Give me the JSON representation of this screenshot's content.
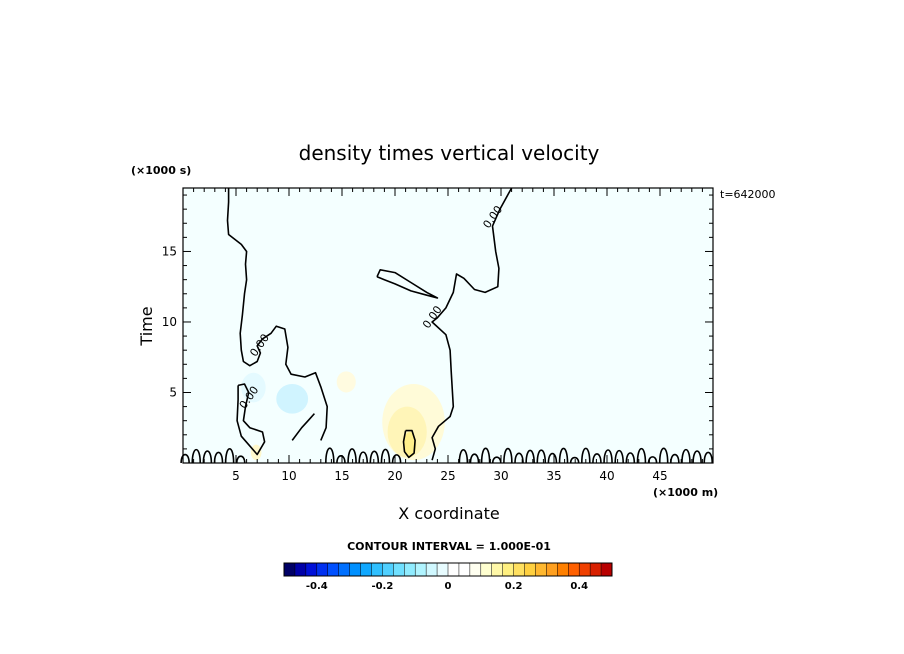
{
  "chart_data": {
    "type": "heatmap",
    "title": "density times vertical velocity",
    "xlabel": "X coordinate",
    "ylabel": "Time",
    "x_unit": "(×1000 m)",
    "y_unit": "(×1000 s)",
    "time_stamp": "t=642000",
    "xlim": [
      0,
      50
    ],
    "ylim": [
      0,
      19.5
    ],
    "x_ticks": [
      5,
      10,
      15,
      20,
      25,
      30,
      35,
      40,
      45
    ],
    "y_ticks": [
      5,
      10,
      15
    ],
    "zero_contour_label": "0.00",
    "zero_contour_label_positions": [
      {
        "x": 7.5,
        "y": 8.2
      },
      {
        "x": 6.5,
        "y": 4.5
      },
      {
        "x": 23.8,
        "y": 10.2
      },
      {
        "x": 29.5,
        "y": 17.3
      }
    ],
    "zero_contours": [
      [
        [
          4.3,
          19.5
        ],
        [
          4.3,
          18.5
        ],
        [
          4.2,
          17.2
        ],
        [
          4.3,
          16.2
        ],
        [
          5.5,
          15.5
        ],
        [
          6.0,
          15.0
        ],
        [
          5.9,
          14.1
        ],
        [
          6.0,
          13.0
        ],
        [
          5.8,
          12.0
        ],
        [
          5.6,
          10.5
        ],
        [
          5.4,
          9.2
        ],
        [
          5.5,
          8.0
        ],
        [
          5.7,
          7.2
        ],
        [
          6.3,
          6.9
        ],
        [
          7.0,
          7.2
        ],
        [
          7.3,
          7.8
        ],
        [
          7.0,
          8.3
        ],
        [
          7.5,
          8.8
        ],
        [
          8.3,
          9.2
        ],
        [
          8.8,
          9.7
        ],
        [
          9.6,
          9.5
        ],
        [
          9.9,
          8.2
        ],
        [
          9.7,
          7.0
        ],
        [
          10.2,
          6.3
        ],
        [
          11.5,
          6.1
        ],
        [
          12.5,
          6.4
        ],
        [
          13.0,
          5.4
        ],
        [
          13.6,
          4.0
        ],
        [
          13.5,
          2.5
        ],
        [
          13.0,
          1.6
        ]
      ],
      [
        [
          12.4,
          3.5
        ],
        [
          11.8,
          3.0
        ],
        [
          11.2,
          2.5
        ],
        [
          10.3,
          1.6
        ]
      ],
      [
        [
          31.0,
          19.5
        ],
        [
          29.9,
          18.0
        ],
        [
          29.2,
          16.8
        ],
        [
          29.5,
          15.0
        ],
        [
          29.8,
          13.8
        ],
        [
          29.7,
          12.5
        ],
        [
          28.5,
          12.1
        ],
        [
          27.5,
          12.3
        ],
        [
          26.5,
          13.1
        ],
        [
          25.8,
          13.4
        ],
        [
          25.5,
          12.1
        ],
        [
          24.8,
          11.0
        ],
        [
          24.0,
          10.3
        ],
        [
          23.5,
          10.0
        ],
        [
          24.8,
          9.1
        ],
        [
          25.2,
          8.0
        ],
        [
          25.3,
          6.5
        ],
        [
          25.5,
          4.0
        ],
        [
          25.2,
          3.3
        ],
        [
          24.1,
          2.6
        ],
        [
          23.5,
          1.8
        ],
        [
          23.8,
          1.0
        ],
        [
          23.5,
          0.2
        ]
      ],
      [
        [
          18.3,
          13.2
        ],
        [
          18.6,
          13.7
        ],
        [
          20.0,
          13.5
        ],
        [
          21.5,
          12.8
        ],
        [
          23.0,
          12.1
        ],
        [
          24.0,
          11.7
        ],
        [
          23.0,
          11.9
        ],
        [
          21.5,
          12.2
        ],
        [
          20.0,
          12.7
        ],
        [
          19.0,
          13.0
        ],
        [
          18.3,
          13.2
        ]
      ],
      [
        [
          5.2,
          5.5
        ],
        [
          5.8,
          5.6
        ],
        [
          6.2,
          5.0
        ],
        [
          5.9,
          4.0
        ],
        [
          5.7,
          3.0
        ],
        [
          6.3,
          2.5
        ],
        [
          7.5,
          2.2
        ],
        [
          7.7,
          1.5
        ],
        [
          7.0,
          0.6
        ],
        [
          6.2,
          1.3
        ],
        [
          5.5,
          1.9
        ],
        [
          5.1,
          3.0
        ],
        [
          5.2,
          4.5
        ],
        [
          5.2,
          5.5
        ]
      ],
      [
        [
          21.0,
          2.3
        ],
        [
          21.6,
          2.3
        ],
        [
          21.9,
          1.6
        ],
        [
          21.8,
          0.7
        ],
        [
          21.3,
          0.4
        ],
        [
          20.9,
          0.8
        ],
        [
          20.8,
          1.5
        ],
        [
          21.0,
          2.3
        ]
      ]
    ],
    "colorbar": {
      "label": "CONTOUR INTERVAL = 1.000E-01",
      "range": [
        -0.5,
        0.5
      ],
      "tick_labels": [
        "-0.4",
        "-0.2",
        "0",
        "0.2",
        "0.4"
      ],
      "tick_values": [
        -0.4,
        -0.2,
        0,
        0.2,
        0.4
      ],
      "colors": [
        "#000066",
        "#0000a8",
        "#0010d8",
        "#0030f0",
        "#0050ff",
        "#0070ff",
        "#0090ff",
        "#10a8ff",
        "#30c0ff",
        "#50d0ff",
        "#70e0ff",
        "#90ecff",
        "#b0f4ff",
        "#d0f8ff",
        "#e8fcff",
        "#ffffff",
        "#ffffff",
        "#fffff0",
        "#ffffd0",
        "#fff8a8",
        "#fff080",
        "#ffe060",
        "#ffd040",
        "#ffb830",
        "#ffa020",
        "#ff8000",
        "#ff6000",
        "#f04000",
        "#d82000",
        "#b80000"
      ]
    },
    "field_patches": [
      {
        "kind": "background",
        "x": [
          0,
          50
        ],
        "y": [
          0,
          19.5
        ],
        "color": "#f4ffff"
      },
      {
        "kind": "light-cyan",
        "x": [
          8.8,
          11.8
        ],
        "y": [
          3.5,
          5.6
        ],
        "color": "#d0f4ff"
      },
      {
        "kind": "light-cyan",
        "x": [
          5.5,
          7.8
        ],
        "y": [
          4.3,
          6.4
        ],
        "color": "#e4faff"
      },
      {
        "kind": "faint-yellow",
        "x": [
          14.5,
          16.3
        ],
        "y": [
          5.0,
          6.5
        ],
        "color": "#fffbe0"
      },
      {
        "kind": "faint-yellow",
        "x": [
          18.8,
          24.7
        ],
        "y": [
          0.2,
          5.6
        ],
        "color": "#fffbd8"
      },
      {
        "kind": "yellow",
        "x": [
          19.3,
          23.0
        ],
        "y": [
          0.4,
          4.0
        ],
        "color": "#fff5b8"
      },
      {
        "kind": "strong-yellow",
        "x": [
          20.8,
          22.0
        ],
        "y": [
          0.4,
          2.2
        ],
        "color": "#ffef8a"
      },
      {
        "kind": "faint-yellow",
        "x": [
          6.4,
          7.4
        ],
        "y": [
          0.2,
          1.3
        ],
        "color": "#fff8cc"
      }
    ]
  }
}
